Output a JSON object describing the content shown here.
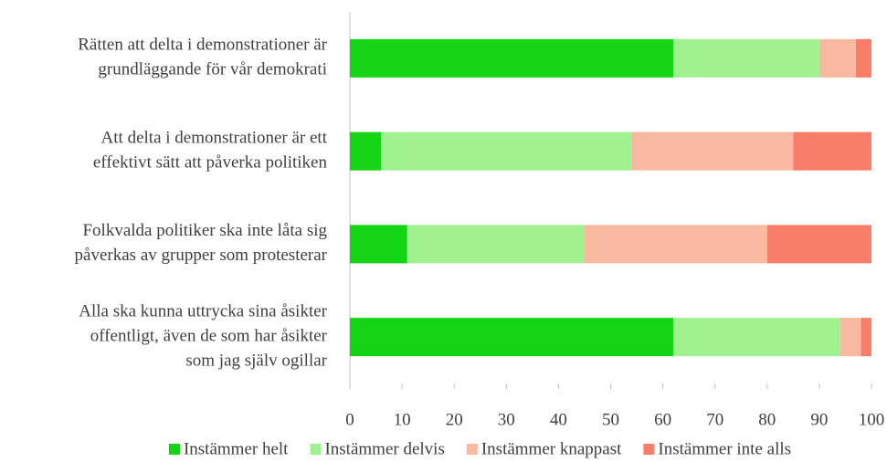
{
  "chart_data": {
    "type": "stacked_barh",
    "categories": [
      [
        "Rätten att delta i demonstrationer är",
        "grundläggande för vår demokrati"
      ],
      [
        "Att delta i demonstrationer är ett",
        "effektivt sätt att påverka politiken"
      ],
      [
        "Folkvalda politiker ska inte låta sig",
        "påverkas av grupper som protesterar"
      ],
      [
        "Alla ska kunna uttrycka sina åsikter",
        "offentligt, även de som har åsikter",
        "som jag själv ogillar"
      ]
    ],
    "series": [
      {
        "name": "Instämmer helt",
        "color": "#14d414",
        "values": [
          62,
          6,
          11,
          62
        ]
      },
      {
        "name": "Instämmer delvis",
        "color": "#a0f290",
        "values": [
          28,
          48,
          34,
          32
        ]
      },
      {
        "name": "Instämmer knappast",
        "color": "#f9b9a0",
        "values": [
          7,
          31,
          35,
          4
        ]
      },
      {
        "name": "Instämmer inte alls",
        "color": "#fa7d6a",
        "values": [
          3,
          15,
          20,
          2
        ]
      }
    ],
    "xlim": [
      0,
      100
    ],
    "xticks": [
      0,
      10,
      20,
      30,
      40,
      50,
      60,
      70,
      80,
      90,
      100
    ],
    "legend": "bottom"
  }
}
